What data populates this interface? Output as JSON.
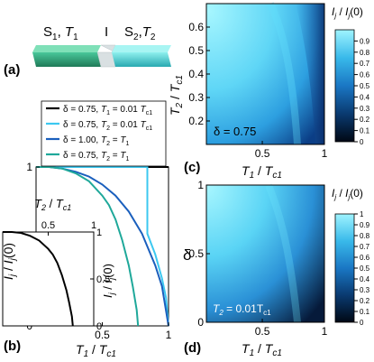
{
  "schematic": {
    "panel_letter": "(a)",
    "left_label": "S1, T1",
    "left_label_parts": [
      "S",
      "1",
      ", ",
      "T",
      "1"
    ],
    "mid_label": "I",
    "right_label": "S2, T2",
    "right_label_parts": [
      "S",
      "2",
      ",",
      "T",
      "2"
    ]
  },
  "colors": {
    "black": "#000000",
    "cyan": "#3cc8f0",
    "blue": "#1a5fbd",
    "teal": "#1fa89a",
    "slab_green": "#2e9e74",
    "slab_cyan": "#4fd0d6",
    "slab_gray": "#cfd6d8"
  },
  "chart_data": [
    {
      "panel": "(b)",
      "type": "line",
      "xlabel": "T1 / Tc1",
      "ylabel": "Ij / Ij(0)",
      "xlim": [
        0,
        1
      ],
      "ylim": [
        0,
        1
      ],
      "x_ticks": [
        "0.5",
        "1"
      ],
      "y_ticks": [
        "0",
        "0.5",
        "1"
      ],
      "legend_position": "top-right",
      "series": [
        {
          "name": "δ = 0.75, T1 = 0.01 Tc1",
          "color": "#000000",
          "x": [
            0,
            0.2,
            0.4,
            0.6,
            0.7,
            0.8,
            0.9,
            1.0
          ],
          "y": [
            1,
            1,
            1,
            1,
            1,
            1,
            1,
            1
          ]
        },
        {
          "name": "δ = 0.75, T2 = 0.01 Tc1",
          "color": "#3cc8f0",
          "x": [
            0,
            0.1,
            0.2,
            0.3,
            0.4,
            0.5,
            0.6,
            0.7,
            0.8,
            0.84,
            0.84,
            0.9,
            0.95,
            0.98,
            1.0
          ],
          "y": [
            1,
            1,
            1,
            1,
            1,
            1,
            1,
            1,
            1,
            1,
            0.58,
            0.45,
            0.3,
            0.18,
            0
          ]
        },
        {
          "name": "δ = 1.00, T2 = T1",
          "color": "#1a5fbd",
          "x": [
            0,
            0.1,
            0.2,
            0.3,
            0.4,
            0.5,
            0.6,
            0.7,
            0.8,
            0.9,
            0.95,
            1.0
          ],
          "y": [
            1,
            1,
            0.99,
            0.97,
            0.94,
            0.89,
            0.82,
            0.72,
            0.58,
            0.38,
            0.25,
            0
          ]
        },
        {
          "name": "δ = 0.75, T2 = T1",
          "color": "#1fa89a",
          "x": [
            0,
            0.1,
            0.2,
            0.3,
            0.4,
            0.5,
            0.55,
            0.6,
            0.65,
            0.7,
            0.73,
            0.76,
            0.77
          ],
          "y": [
            1,
            1,
            0.99,
            0.96,
            0.91,
            0.82,
            0.76,
            0.67,
            0.54,
            0.38,
            0.25,
            0.1,
            0
          ]
        }
      ],
      "legend": [
        {
          "parts": [
            "δ = 0.75, ",
            "T",
            "1",
            " = 0.01 ",
            "T",
            "c1"
          ],
          "color": "#000000"
        },
        {
          "parts": [
            "δ = 0.75, ",
            "T",
            "2",
            " = 0.01 ",
            "T",
            "c1"
          ],
          "color": "#3cc8f0"
        },
        {
          "parts": [
            "δ = 1.00, ",
            "T",
            "2",
            " = ",
            "T",
            "1"
          ],
          "color": "#1a5fbd"
        },
        {
          "parts": [
            "δ = 0.75, ",
            "T",
            "2",
            " = ",
            "T",
            "1"
          ],
          "color": "#1fa89a"
        }
      ],
      "inset": {
        "xlabel": "T2 / Tc1",
        "ylabel": "Ij / Ij(0)",
        "xlim": [
          0,
          1
        ],
        "ylim": [
          0,
          1
        ],
        "x_ticks": [
          "0.5",
          "1"
        ],
        "y_ticks": [
          "0",
          "0.5",
          "1"
        ],
        "series": [
          {
            "color": "#000000",
            "x": [
              0,
              0.1,
              0.2,
              0.3,
              0.4,
              0.5,
              0.55,
              0.6,
              0.65,
              0.7,
              0.73,
              0.76,
              0.77
            ],
            "y": [
              1,
              1,
              0.99,
              0.96,
              0.91,
              0.82,
              0.76,
              0.67,
              0.54,
              0.38,
              0.25,
              0.1,
              0
            ]
          }
        ]
      }
    },
    {
      "panel": "(c)",
      "type": "heatmap",
      "xlabel": "T1 / Tc1",
      "ylabel": "T2 / Tc1",
      "xlim": [
        0.05,
        1
      ],
      "ylim": [
        0.1,
        0.7
      ],
      "x_ticks": [
        "0.5",
        "1"
      ],
      "y_ticks": [
        "0.2",
        "0.3",
        "0.4",
        "0.5",
        "0.6"
      ],
      "annotation": "δ = 0.75",
      "colorbar_label": "Ij / Ij(0)",
      "colorbar_ticks": [
        "0",
        "0.1",
        "0.2",
        "0.3",
        "0.4",
        "0.5",
        "0.6",
        "0.7",
        "0.8",
        "0.9"
      ],
      "colorbar_range": [
        0,
        1
      ]
    },
    {
      "panel": "(d)",
      "type": "heatmap",
      "xlabel": "T1 / Tc1",
      "ylabel": "δ",
      "xlim": [
        0.05,
        1
      ],
      "ylim": [
        0,
        1
      ],
      "x_ticks": [
        "0.5",
        "1"
      ],
      "y_ticks": [
        "0",
        "0.5",
        "1"
      ],
      "annotation": "T2 = 0.01Tc1",
      "colorbar_label": "Ij / Ij(0)",
      "colorbar_ticks": [
        "0",
        "0.1",
        "0.2",
        "0.3",
        "0.4",
        "0.5",
        "0.6",
        "0.7",
        "0.8",
        "0.9",
        "1"
      ],
      "colorbar_range": [
        0,
        1
      ]
    }
  ]
}
